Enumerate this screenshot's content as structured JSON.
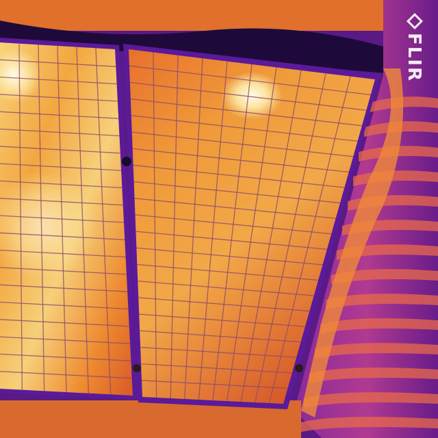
{
  "logo": {
    "text": "FLIR"
  }
}
